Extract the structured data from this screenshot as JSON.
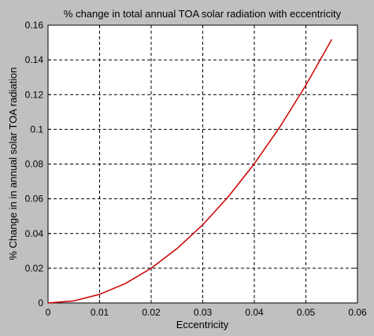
{
  "chart_data": {
    "type": "line",
    "title": "% change in total annual TOA solar radiation with eccentricity",
    "xlabel": "Eccentricity",
    "ylabel": "% Change in in annual solar TOA radiation",
    "xlim": [
      0,
      0.06
    ],
    "ylim": [
      0,
      0.16
    ],
    "xticks": [
      0,
      0.01,
      0.02,
      0.03,
      0.04,
      0.05,
      0.06
    ],
    "yticks": [
      0,
      0.02,
      0.04,
      0.06,
      0.08,
      0.1,
      0.12,
      0.14,
      0.16
    ],
    "grid": true,
    "series": [
      {
        "color": "#cc0000",
        "x": [
          0,
          0.005,
          0.01,
          0.015,
          0.02,
          0.025,
          0.03,
          0.035,
          0.04,
          0.045,
          0.05,
          0.055
        ],
        "y": [
          0,
          0.0012,
          0.005,
          0.0112,
          0.02,
          0.0313,
          0.045,
          0.0614,
          0.0802,
          0.1016,
          0.1254,
          0.1518
        ]
      }
    ]
  }
}
